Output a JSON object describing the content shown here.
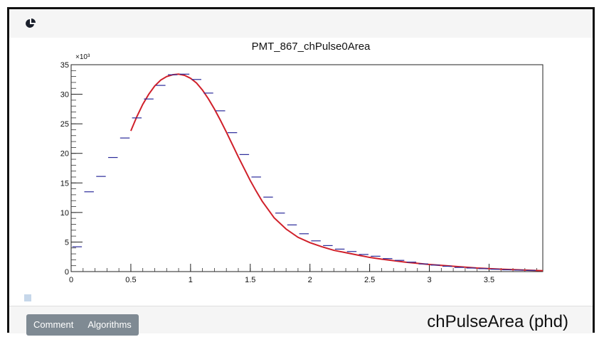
{
  "toolbar": {
    "comment_label": "Comment",
    "algorithms_label": "Algorithms"
  },
  "icons": {
    "top": "pie-chart-icon"
  },
  "colors": {
    "data_points": "#2a2a9a",
    "fit_line": "#d0202a"
  },
  "x_axis_title": "chPulseArea (phd)",
  "chart_data": {
    "type": "scatter",
    "title": "PMT_867_chPulse0Area",
    "xlabel": "chPulseArea (phd)",
    "ylabel": "",
    "y_multiplier_label": "×10³",
    "xlim": [
      0,
      3.95
    ],
    "ylim": [
      0,
      35
    ],
    "x_ticks": [
      0,
      0.5,
      1,
      1.5,
      2,
      2.5,
      3,
      3.5
    ],
    "x_tick_labels": [
      "0",
      "0.5",
      "1",
      "1.5",
      "2",
      "2.5",
      "3",
      "3.5"
    ],
    "y_ticks": [
      0,
      5,
      10,
      15,
      20,
      25,
      30,
      35
    ],
    "y_tick_labels": [
      "0",
      "5",
      "10",
      "15",
      "20",
      "25",
      "30",
      "35"
    ],
    "bin_width": 0.1,
    "series": [
      {
        "kind": "histogram-points",
        "x": [
          0.05,
          0.15,
          0.25,
          0.35,
          0.45,
          0.55,
          0.65,
          0.75,
          0.85,
          0.95,
          1.05,
          1.15,
          1.25,
          1.35,
          1.45,
          1.55,
          1.65,
          1.75,
          1.85,
          1.95,
          2.05,
          2.15,
          2.25,
          2.35,
          2.45,
          2.55,
          2.65,
          2.75,
          2.85,
          2.95,
          3.05,
          3.15,
          3.25,
          3.35,
          3.45,
          3.55,
          3.65,
          3.75,
          3.85
        ],
        "y": [
          4.2,
          13.5,
          16.1,
          19.3,
          22.6,
          26.0,
          29.2,
          31.5,
          33.3,
          33.4,
          32.5,
          30.2,
          27.2,
          23.5,
          19.8,
          16.0,
          12.6,
          9.9,
          7.9,
          6.4,
          5.2,
          4.4,
          3.8,
          3.4,
          2.9,
          2.6,
          2.2,
          1.9,
          1.6,
          1.3,
          1.1,
          0.9,
          0.7,
          0.6,
          0.5,
          0.4,
          0.3,
          0.25,
          0.2
        ]
      },
      {
        "kind": "fit-curve",
        "x": [
          0.5,
          0.55,
          0.6,
          0.65,
          0.7,
          0.75,
          0.8,
          0.85,
          0.9,
          0.95,
          1.0,
          1.05,
          1.1,
          1.15,
          1.2,
          1.25,
          1.3,
          1.35,
          1.4,
          1.45,
          1.5,
          1.55,
          1.6,
          1.7,
          1.8,
          1.9,
          2.0,
          2.1,
          2.2,
          2.3,
          2.4,
          2.5,
          2.6,
          2.8,
          3.0,
          3.2,
          3.4,
          3.6,
          3.8,
          3.95
        ],
        "y": [
          23.8,
          26.2,
          28.3,
          30.0,
          31.4,
          32.4,
          33.0,
          33.3,
          33.4,
          33.2,
          32.7,
          31.9,
          30.7,
          29.2,
          27.5,
          25.6,
          23.6,
          21.5,
          19.4,
          17.4,
          15.4,
          13.6,
          11.9,
          9.1,
          7.2,
          5.8,
          4.9,
          4.2,
          3.6,
          3.2,
          2.8,
          2.4,
          2.1,
          1.6,
          1.2,
          0.9,
          0.6,
          0.4,
          0.25,
          0.15
        ]
      }
    ]
  }
}
